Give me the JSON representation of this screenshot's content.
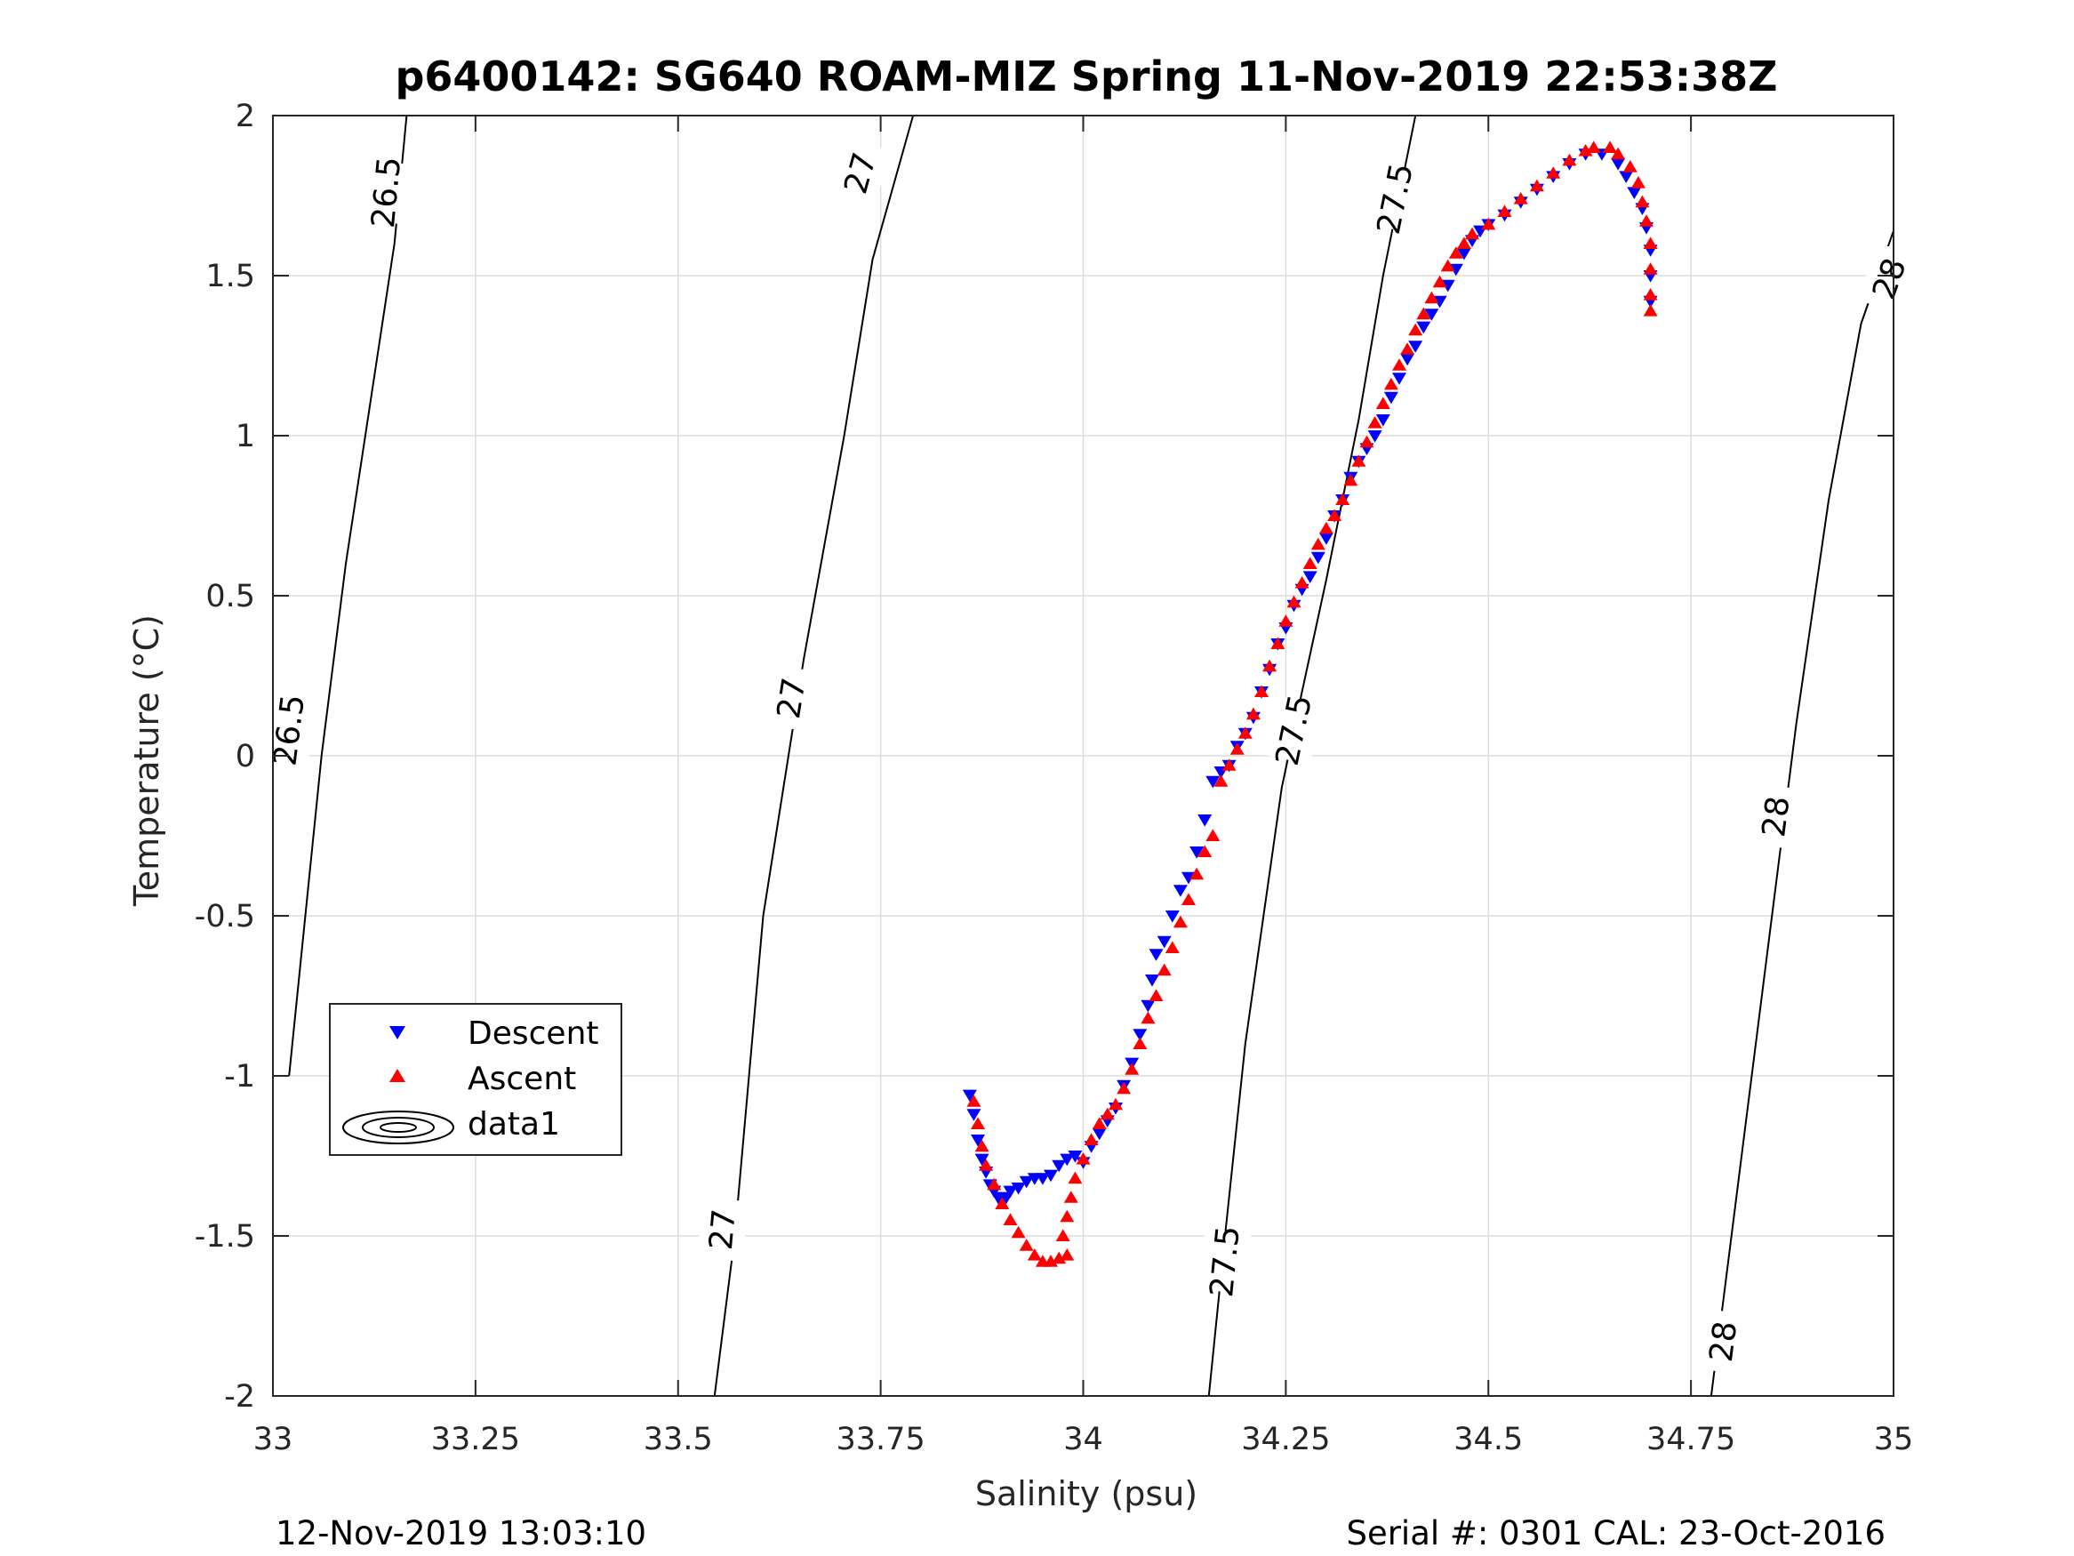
{
  "chart_data": {
    "type": "scatter",
    "title": "p6400142: SG640 ROAM-MIZ Spring 11-Nov-2019 22:53:38Z",
    "xlabel": "Salinity (psu)",
    "ylabel": "Temperature (°C)",
    "xlim": [
      33,
      35
    ],
    "ylim": [
      -2,
      2
    ],
    "x_ticks": [
      33,
      33.25,
      33.5,
      33.75,
      34,
      34.25,
      34.5,
      34.75,
      35
    ],
    "x_tick_labels": [
      "33",
      "33.25",
      "33.5",
      "33.75",
      "34",
      "34.25",
      "34.5",
      "34.75",
      "35"
    ],
    "y_ticks": [
      2,
      1.5,
      1,
      0.5,
      0,
      -0.5,
      -1,
      -1.5,
      -2
    ],
    "y_tick_labels": [
      "2",
      "1.5",
      "1",
      "0.5",
      "0",
      "-0.5",
      "-1",
      "-1.5",
      "-2"
    ],
    "grid": true,
    "legend_position": "lower-left",
    "legend": [
      "Descent",
      "Ascent",
      "data1"
    ],
    "series": [
      {
        "name": "Descent",
        "marker": "triangle-down",
        "color": "#0000ff",
        "points": [
          [
            33.86,
            -1.06
          ],
          [
            33.865,
            -1.12
          ],
          [
            33.87,
            -1.2
          ],
          [
            33.875,
            -1.26
          ],
          [
            33.88,
            -1.3
          ],
          [
            33.885,
            -1.34
          ],
          [
            33.89,
            -1.36
          ],
          [
            33.895,
            -1.38
          ],
          [
            33.9,
            -1.39
          ],
          [
            33.905,
            -1.38
          ],
          [
            33.91,
            -1.36
          ],
          [
            33.92,
            -1.35
          ],
          [
            33.93,
            -1.33
          ],
          [
            33.94,
            -1.32
          ],
          [
            33.95,
            -1.32
          ],
          [
            33.96,
            -1.31
          ],
          [
            33.97,
            -1.28
          ],
          [
            33.98,
            -1.26
          ],
          [
            33.99,
            -1.25
          ],
          [
            34.0,
            -1.27
          ],
          [
            34.01,
            -1.22
          ],
          [
            34.02,
            -1.18
          ],
          [
            34.03,
            -1.14
          ],
          [
            34.04,
            -1.1
          ],
          [
            34.05,
            -1.03
          ],
          [
            34.06,
            -0.96
          ],
          [
            34.07,
            -0.87
          ],
          [
            34.08,
            -0.78
          ],
          [
            34.085,
            -0.7
          ],
          [
            34.09,
            -0.62
          ],
          [
            34.1,
            -0.58
          ],
          [
            34.11,
            -0.5
          ],
          [
            34.12,
            -0.42
          ],
          [
            34.13,
            -0.38
          ],
          [
            34.14,
            -0.3
          ],
          [
            34.15,
            -0.2
          ],
          [
            34.16,
            -0.08
          ],
          [
            34.17,
            -0.05
          ],
          [
            34.18,
            -0.03
          ],
          [
            34.19,
            0.03
          ],
          [
            34.2,
            0.07
          ],
          [
            34.21,
            0.12
          ],
          [
            34.22,
            0.2
          ],
          [
            34.23,
            0.27
          ],
          [
            34.24,
            0.35
          ],
          [
            34.25,
            0.4
          ],
          [
            34.26,
            0.47
          ],
          [
            34.27,
            0.52
          ],
          [
            34.28,
            0.56
          ],
          [
            34.29,
            0.62
          ],
          [
            34.3,
            0.68
          ],
          [
            34.31,
            0.75
          ],
          [
            34.32,
            0.8
          ],
          [
            34.33,
            0.87
          ],
          [
            34.34,
            0.92
          ],
          [
            34.35,
            0.96
          ],
          [
            34.36,
            1.0
          ],
          [
            34.37,
            1.05
          ],
          [
            34.38,
            1.12
          ],
          [
            34.39,
            1.18
          ],
          [
            34.4,
            1.24
          ],
          [
            34.41,
            1.28
          ],
          [
            34.42,
            1.34
          ],
          [
            34.43,
            1.38
          ],
          [
            34.44,
            1.42
          ],
          [
            34.45,
            1.47
          ],
          [
            34.46,
            1.52
          ],
          [
            34.47,
            1.57
          ],
          [
            34.48,
            1.61
          ],
          [
            34.49,
            1.64
          ],
          [
            34.5,
            1.66
          ],
          [
            34.52,
            1.69
          ],
          [
            34.54,
            1.73
          ],
          [
            34.56,
            1.77
          ],
          [
            34.58,
            1.81
          ],
          [
            34.6,
            1.85
          ],
          [
            34.62,
            1.88
          ],
          [
            34.64,
            1.88
          ],
          [
            34.66,
            1.85
          ],
          [
            34.67,
            1.81
          ],
          [
            34.68,
            1.76
          ],
          [
            34.69,
            1.71
          ],
          [
            34.695,
            1.65
          ],
          [
            34.7,
            1.58
          ],
          [
            34.7,
            1.5
          ],
          [
            34.7,
            1.42
          ]
        ]
      },
      {
        "name": "Ascent",
        "marker": "triangle-up",
        "color": "#ff0000",
        "points": [
          [
            33.865,
            -1.08
          ],
          [
            33.87,
            -1.15
          ],
          [
            33.875,
            -1.22
          ],
          [
            33.88,
            -1.28
          ],
          [
            33.89,
            -1.34
          ],
          [
            33.9,
            -1.4
          ],
          [
            33.91,
            -1.45
          ],
          [
            33.92,
            -1.49
          ],
          [
            33.93,
            -1.53
          ],
          [
            33.94,
            -1.56
          ],
          [
            33.95,
            -1.58
          ],
          [
            33.96,
            -1.58
          ],
          [
            33.97,
            -1.57
          ],
          [
            33.98,
            -1.56
          ],
          [
            33.975,
            -1.5
          ],
          [
            33.98,
            -1.44
          ],
          [
            33.985,
            -1.38
          ],
          [
            33.99,
            -1.32
          ],
          [
            34.0,
            -1.26
          ],
          [
            34.01,
            -1.2
          ],
          [
            34.02,
            -1.15
          ],
          [
            34.03,
            -1.12
          ],
          [
            34.04,
            -1.09
          ],
          [
            34.05,
            -1.04
          ],
          [
            34.06,
            -0.98
          ],
          [
            34.07,
            -0.9
          ],
          [
            34.08,
            -0.82
          ],
          [
            34.09,
            -0.75
          ],
          [
            34.1,
            -0.67
          ],
          [
            34.11,
            -0.6
          ],
          [
            34.12,
            -0.52
          ],
          [
            34.13,
            -0.45
          ],
          [
            34.14,
            -0.37
          ],
          [
            34.15,
            -0.3
          ],
          [
            34.16,
            -0.25
          ],
          [
            34.17,
            -0.08
          ],
          [
            34.18,
            -0.03
          ],
          [
            34.19,
            0.02
          ],
          [
            34.2,
            0.07
          ],
          [
            34.21,
            0.13
          ],
          [
            34.22,
            0.2
          ],
          [
            34.23,
            0.28
          ],
          [
            34.24,
            0.35
          ],
          [
            34.25,
            0.42
          ],
          [
            34.26,
            0.48
          ],
          [
            34.27,
            0.54
          ],
          [
            34.28,
            0.6
          ],
          [
            34.29,
            0.66
          ],
          [
            34.3,
            0.71
          ],
          [
            34.31,
            0.75
          ],
          [
            34.32,
            0.8
          ],
          [
            34.33,
            0.86
          ],
          [
            34.34,
            0.92
          ],
          [
            34.35,
            0.98
          ],
          [
            34.36,
            1.04
          ],
          [
            34.37,
            1.1
          ],
          [
            34.38,
            1.16
          ],
          [
            34.39,
            1.22
          ],
          [
            34.4,
            1.27
          ],
          [
            34.41,
            1.33
          ],
          [
            34.42,
            1.38
          ],
          [
            34.43,
            1.43
          ],
          [
            34.44,
            1.48
          ],
          [
            34.45,
            1.53
          ],
          [
            34.46,
            1.57
          ],
          [
            34.47,
            1.6
          ],
          [
            34.48,
            1.63
          ],
          [
            34.5,
            1.66
          ],
          [
            34.52,
            1.7
          ],
          [
            34.54,
            1.74
          ],
          [
            34.56,
            1.78
          ],
          [
            34.58,
            1.82
          ],
          [
            34.6,
            1.86
          ],
          [
            34.62,
            1.89
          ],
          [
            34.63,
            1.9
          ],
          [
            34.65,
            1.9
          ],
          [
            34.66,
            1.88
          ],
          [
            34.675,
            1.84
          ],
          [
            34.685,
            1.79
          ],
          [
            34.69,
            1.73
          ],
          [
            34.695,
            1.67
          ],
          [
            34.7,
            1.6
          ],
          [
            34.7,
            1.52
          ],
          [
            34.7,
            1.44
          ],
          [
            34.7,
            1.39
          ]
        ]
      }
    ],
    "contours": {
      "name": "data1",
      "color": "#000000",
      "levels": [
        {
          "level": "26.5",
          "x": [
            32.99,
            33.02,
            33.06,
            33.09,
            33.12,
            33.15,
            33.165
          ],
          "y": [
            -2.0,
            -1.0,
            0.0,
            0.6,
            1.1,
            1.6,
            2.0
          ],
          "label_positions": [
            [
              33.02,
              0.08
            ],
            [
              33.14,
              1.76
            ]
          ]
        },
        {
          "level": "27",
          "x": [
            33.545,
            33.57,
            33.605,
            33.655,
            33.705,
            33.74,
            33.79
          ],
          "y": [
            -2.0,
            -1.5,
            -0.5,
            0.3,
            1.0,
            1.55,
            2.0
          ],
          "label_positions": [
            [
              33.555,
              -1.48
            ],
            [
              33.64,
              0.18
            ],
            [
              33.725,
              1.82
            ]
          ]
        },
        {
          "level": "27.5",
          "x": [
            34.155,
            34.175,
            34.2,
            34.245,
            34.27,
            34.3,
            34.34,
            34.37,
            34.41
          ],
          "y": [
            -2.0,
            -1.5,
            -0.9,
            -0.1,
            0.2,
            0.55,
            1.05,
            1.5,
            2.0
          ],
          "label_positions": [
            [
              34.175,
              -1.58
            ],
            [
              34.26,
              0.08
            ],
            [
              34.385,
              1.74
            ]
          ]
        },
        {
          "level": "28",
          "x": [
            34.775,
            34.8,
            34.845,
            34.88,
            34.92,
            34.96,
            35.0
          ],
          "y": [
            -2.0,
            -1.5,
            -0.6,
            0.1,
            0.8,
            1.35,
            1.64
          ],
          "label_positions": [
            [
              34.79,
              -1.83
            ],
            [
              34.855,
              -0.19
            ],
            [
              34.995,
              1.49
            ]
          ]
        }
      ]
    }
  },
  "footer": {
    "left": "12-Nov-2019 13:03:10",
    "right": "Serial #: 0301  CAL: 23-Oct-2016"
  }
}
